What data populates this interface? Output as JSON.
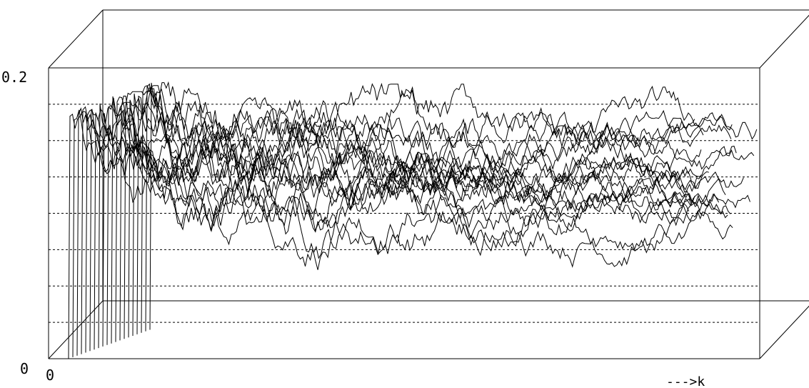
{
  "chart_data": {
    "type": "line",
    "title": "",
    "projection": "3d-waterfall",
    "xlabel": "--->k",
    "ylabel": "",
    "x_tick_labels": [
      "0"
    ],
    "y_tick_labels": [
      "0",
      "0.2"
    ],
    "ylim": [
      0,
      0.2
    ],
    "grid": true,
    "grid_style": "dotted horizontal lines every 0.025",
    "series_count": 20,
    "line_color": "#000000",
    "background_color": "#ffffff"
  }
}
